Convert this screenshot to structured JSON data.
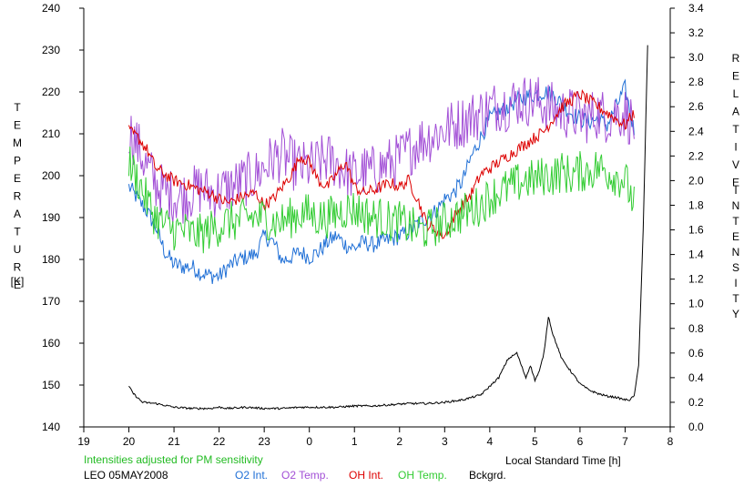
{
  "chart_data": {
    "type": "line",
    "title": "",
    "xlabel": "Local Standard Time [h]",
    "ylabel_left_letters": [
      "T",
      "E",
      "M",
      "P",
      "E",
      "R",
      "A",
      "T",
      "U",
      "R",
      "E"
    ],
    "ylabel_left_unit": "[K]",
    "ylabel_right_letters_1": [
      "R",
      "E",
      "L",
      "A",
      "T",
      "I",
      "V",
      "E"
    ],
    "ylabel_right_letters_2": [
      "I",
      "N",
      "T",
      "E",
      "N",
      "S",
      "I",
      "T",
      "Y"
    ],
    "xlim": [
      19,
      32
    ],
    "ylim_left": [
      140,
      240
    ],
    "ylim_right": [
      0.0,
      3.4
    ],
    "x_ticks": [
      19,
      20,
      21,
      22,
      23,
      24,
      25,
      26,
      27,
      28,
      29,
      30,
      31,
      32
    ],
    "x_tick_labels": [
      "19",
      "20",
      "21",
      "22",
      "23",
      "0",
      "1",
      "2",
      "3",
      "4",
      "5",
      "6",
      "7",
      "8"
    ],
    "y_left_ticks": [
      "140",
      "150",
      "160",
      "170",
      "180",
      "190",
      "200",
      "210",
      "220",
      "230",
      "240"
    ],
    "y_right_ticks": [
      "0.0",
      "0.2",
      "0.4",
      "0.6",
      "0.8",
      "1.0",
      "1.2",
      "1.4",
      "1.6",
      "1.8",
      "2.0",
      "2.2",
      "2.4",
      "2.6",
      "2.8",
      "3.0",
      "3.2",
      "3.4"
    ],
    "grid": false,
    "note": "Intensities adjusted for PM sensitivity",
    "station": "LEO 05MAY2008",
    "series": [
      {
        "name": "O2 Int.",
        "color": "#1f6fd6",
        "axis": "right",
        "x": [
          20.0,
          20.2,
          20.4,
          20.6,
          20.8,
          21.0,
          21.2,
          21.4,
          21.6,
          21.8,
          22.0,
          22.2,
          22.4,
          22.6,
          22.8,
          23.0,
          23.2,
          23.4,
          23.6,
          23.8,
          24.0,
          24.2,
          24.4,
          24.6,
          24.8,
          25.0,
          25.2,
          25.4,
          25.6,
          25.8,
          26.0,
          26.2,
          26.4,
          26.6,
          26.8,
          27.0,
          27.2,
          27.4,
          27.6,
          27.8,
          28.0,
          28.2,
          28.4,
          28.6,
          28.8,
          29.0,
          29.2,
          29.4,
          29.6,
          29.8,
          30.0,
          30.2,
          30.4,
          30.6,
          30.8,
          31.0,
          31.2
        ],
        "y": [
          1.95,
          1.85,
          1.75,
          1.62,
          1.42,
          1.32,
          1.3,
          1.3,
          1.25,
          1.23,
          1.22,
          1.3,
          1.35,
          1.38,
          1.4,
          1.55,
          1.5,
          1.35,
          1.38,
          1.42,
          1.38,
          1.42,
          1.5,
          1.55,
          1.48,
          1.45,
          1.5,
          1.48,
          1.5,
          1.52,
          1.55,
          1.58,
          1.65,
          1.7,
          1.75,
          1.85,
          1.9,
          2.0,
          2.2,
          2.35,
          2.5,
          2.55,
          2.6,
          2.65,
          2.68,
          2.7,
          2.72,
          2.7,
          2.62,
          2.55,
          2.5,
          2.48,
          2.5,
          2.45,
          2.6,
          2.75,
          2.4
        ]
      },
      {
        "name": "O2 Temp.",
        "color": "#a24fd6",
        "axis": "left",
        "x": [
          20.0,
          20.2,
          20.4,
          20.6,
          20.8,
          21.0,
          21.2,
          21.4,
          21.6,
          21.8,
          22.0,
          22.2,
          22.4,
          22.6,
          22.8,
          23.0,
          23.2,
          23.4,
          23.6,
          23.8,
          24.0,
          24.2,
          24.4,
          24.6,
          24.8,
          25.0,
          25.2,
          25.4,
          25.6,
          25.8,
          26.0,
          26.2,
          26.4,
          26.6,
          26.8,
          27.0,
          27.2,
          27.4,
          27.6,
          27.8,
          28.0,
          28.2,
          28.4,
          28.6,
          28.8,
          29.0,
          29.2,
          29.4,
          29.6,
          29.8,
          30.0,
          30.2,
          30.4,
          30.6,
          30.8,
          31.0,
          31.2
        ],
        "y": [
          211,
          207,
          202,
          198,
          196,
          195,
          195,
          196,
          197,
          196,
          196,
          197,
          198,
          199,
          200,
          202,
          204,
          205,
          203,
          202,
          202,
          203,
          204,
          203,
          201,
          200,
          201,
          201,
          202,
          203,
          204,
          206,
          208,
          209,
          210,
          211,
          212,
          213,
          214,
          215,
          216,
          217,
          217,
          218,
          218,
          218,
          217,
          216,
          215,
          215,
          214,
          214,
          215,
          214,
          215,
          215,
          212
        ]
      },
      {
        "name": "OH Int.",
        "color": "#dd0000",
        "axis": "right",
        "x": [
          20.0,
          20.2,
          20.4,
          20.6,
          20.8,
          21.0,
          21.2,
          21.4,
          21.6,
          21.8,
          22.0,
          22.2,
          22.4,
          22.6,
          22.8,
          23.0,
          23.2,
          23.4,
          23.6,
          23.8,
          24.0,
          24.2,
          24.4,
          24.6,
          24.8,
          25.0,
          25.2,
          25.4,
          25.6,
          25.8,
          26.0,
          26.2,
          26.4,
          26.6,
          26.8,
          27.0,
          27.2,
          27.4,
          27.6,
          27.8,
          28.0,
          28.2,
          28.4,
          28.6,
          28.8,
          29.0,
          29.2,
          29.4,
          29.6,
          29.8,
          30.0,
          30.2,
          30.4,
          30.6,
          30.8,
          31.0,
          31.2
        ],
        "y": [
          2.4,
          2.35,
          2.25,
          2.1,
          2.05,
          2.0,
          1.98,
          1.95,
          1.92,
          1.9,
          1.85,
          1.82,
          1.85,
          1.88,
          1.9,
          1.8,
          1.85,
          1.95,
          2.05,
          2.2,
          2.15,
          2.0,
          1.95,
          2.05,
          2.15,
          1.95,
          1.9,
          1.92,
          1.95,
          1.98,
          1.95,
          2.0,
          1.85,
          1.65,
          1.6,
          1.55,
          1.7,
          1.8,
          1.9,
          2.05,
          2.1,
          2.15,
          2.2,
          2.25,
          2.3,
          2.35,
          2.4,
          2.5,
          2.6,
          2.65,
          2.7,
          2.65,
          2.6,
          2.55,
          2.5,
          2.45,
          2.55
        ]
      },
      {
        "name": "OH Temp.",
        "color": "#33cc33",
        "axis": "left",
        "x": [
          20.0,
          20.2,
          20.4,
          20.6,
          20.8,
          21.0,
          21.2,
          21.4,
          21.6,
          21.8,
          22.0,
          22.2,
          22.4,
          22.6,
          22.8,
          23.0,
          23.2,
          23.4,
          23.6,
          23.8,
          24.0,
          24.2,
          24.4,
          24.6,
          24.8,
          25.0,
          25.2,
          25.4,
          25.6,
          25.8,
          26.0,
          26.2,
          26.4,
          26.6,
          26.8,
          27.0,
          27.2,
          27.4,
          27.6,
          27.8,
          28.0,
          28.2,
          28.4,
          28.6,
          28.8,
          29.0,
          29.2,
          29.4,
          29.6,
          29.8,
          30.0,
          30.2,
          30.4,
          30.6,
          30.8,
          31.0,
          31.2
        ],
        "y": [
          203,
          199,
          194,
          190,
          188,
          187,
          187,
          186,
          186,
          187,
          188,
          189,
          189,
          190,
          190,
          190,
          189,
          189,
          190,
          191,
          191,
          190,
          190,
          191,
          192,
          192,
          191,
          190,
          190,
          189,
          189,
          188,
          187,
          187,
          188,
          189,
          190,
          191,
          192,
          193,
          195,
          196,
          197,
          198,
          199,
          199,
          200,
          200,
          201,
          200,
          201,
          201,
          202,
          201,
          200,
          199,
          193
        ]
      },
      {
        "name": "Bckgrd.",
        "color": "#000000",
        "axis": "right",
        "x": [
          20.0,
          20.1,
          20.3,
          20.6,
          21.0,
          21.4,
          21.8,
          22.0,
          22.2,
          22.6,
          23.0,
          23.4,
          23.8,
          24.2,
          24.6,
          25.0,
          25.4,
          25.8,
          26.2,
          26.6,
          27.0,
          27.4,
          27.8,
          28.2,
          28.4,
          28.6,
          28.8,
          28.9,
          29.0,
          29.1,
          29.2,
          29.3,
          29.4,
          29.6,
          29.8,
          30.0,
          30.2,
          30.4,
          30.6,
          30.8,
          31.0,
          31.1,
          31.2,
          31.3,
          31.4,
          31.5
        ],
        "y": [
          0.33,
          0.27,
          0.2,
          0.19,
          0.16,
          0.15,
          0.15,
          0.16,
          0.15,
          0.16,
          0.15,
          0.15,
          0.16,
          0.16,
          0.16,
          0.17,
          0.17,
          0.18,
          0.19,
          0.19,
          0.2,
          0.22,
          0.26,
          0.4,
          0.55,
          0.6,
          0.4,
          0.5,
          0.38,
          0.45,
          0.6,
          0.9,
          0.75,
          0.55,
          0.45,
          0.35,
          0.3,
          0.27,
          0.25,
          0.24,
          0.22,
          0.22,
          0.25,
          0.5,
          1.6,
          3.1
        ]
      }
    ]
  }
}
